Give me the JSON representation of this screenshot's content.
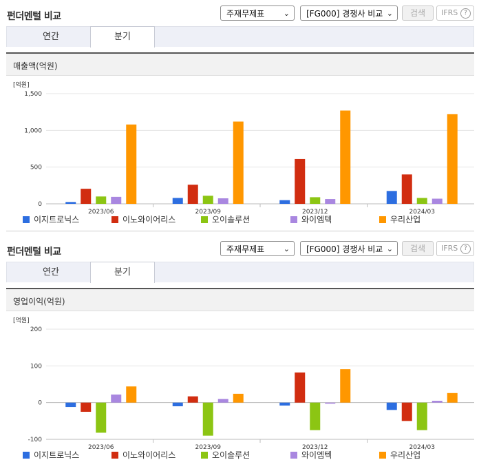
{
  "colors": {
    "series": [
      "#2d6ee0",
      "#d12d10",
      "#8cc513",
      "#a987e0",
      "#ff9700"
    ]
  },
  "panels": [
    {
      "title": "펀더멘털 비교",
      "select_statement": "주재무제표",
      "select_compare": "[FG000] 경쟁사 비교",
      "search_label": "검색",
      "ifrs_label": "IFRS",
      "help_glyph": "?",
      "tabs": [
        "연간",
        "분기"
      ],
      "section_title": "매출액(억원)"
    },
    {
      "title": "펀더멘털 비교",
      "select_statement": "주재무제표",
      "select_compare": "[FG000] 경쟁사 비교",
      "search_label": "검색",
      "ifrs_label": "IFRS",
      "help_glyph": "?",
      "tabs": [
        "연간",
        "분기"
      ],
      "section_title": "영업이익(억원)"
    }
  ],
  "chart_data": [
    {
      "type": "bar",
      "unit_label": "[억원]",
      "categories": [
        "2023/06",
        "2023/09",
        "2023/12",
        "2024/03"
      ],
      "ylim": [
        0,
        1500
      ],
      "yticks": [
        0,
        500,
        1000,
        1500
      ],
      "ytick_labels": [
        "0",
        "500",
        "1,000",
        "1,500"
      ],
      "grid": true,
      "legend": "bottom",
      "series": [
        {
          "name": "이지트로닉스",
          "values": [
            25,
            80,
            50,
            175
          ]
        },
        {
          "name": "이노와이어리스",
          "values": [
            205,
            260,
            610,
            400
          ]
        },
        {
          "name": "오이솔루션",
          "values": [
            100,
            110,
            90,
            80
          ]
        },
        {
          "name": "와이엠텍",
          "values": [
            95,
            75,
            65,
            70
          ]
        },
        {
          "name": "우리산업",
          "values": [
            1080,
            1120,
            1270,
            1220
          ]
        }
      ]
    },
    {
      "type": "bar",
      "unit_label": "[억원]",
      "categories": [
        "2023/06",
        "2023/09",
        "2023/12",
        "2024/03"
      ],
      "ylim": [
        -100,
        200
      ],
      "yticks": [
        -100,
        0,
        100,
        200
      ],
      "ytick_labels": [
        "-100",
        "0",
        "100",
        "200"
      ],
      "grid": true,
      "legend": "bottom",
      "series": [
        {
          "name": "이지트로닉스",
          "values": [
            -12,
            -10,
            -8,
            -20
          ]
        },
        {
          "name": "이노와이어리스",
          "values": [
            -25,
            17,
            82,
            -50
          ]
        },
        {
          "name": "오이솔루션",
          "values": [
            -82,
            -90,
            -75,
            -75
          ]
        },
        {
          "name": "와이엠텍",
          "values": [
            22,
            10,
            -3,
            5
          ]
        },
        {
          "name": "우리산업",
          "values": [
            44,
            24,
            91,
            26
          ]
        }
      ]
    }
  ]
}
